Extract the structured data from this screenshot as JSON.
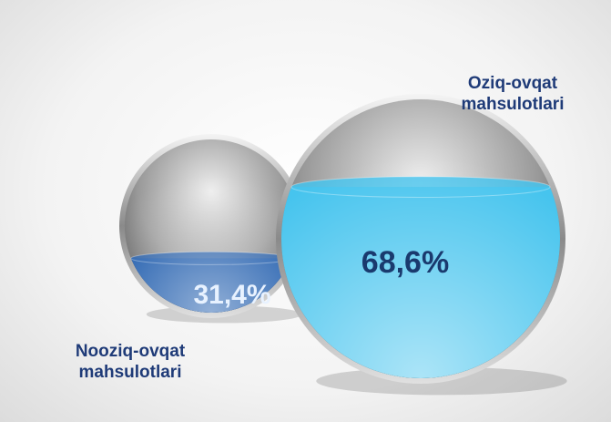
{
  "chart_data": {
    "type": "sphere-fill",
    "categories": [
      "Nooziq-ovqat mahsulotlari",
      "Oziq-ovqat mahsulotlari"
    ],
    "values": [
      31.4,
      68.6
    ],
    "value_labels": [
      "31,4%",
      "68,6%"
    ],
    "colors": [
      "#0d4fa6",
      "#46c4ee"
    ]
  }
}
